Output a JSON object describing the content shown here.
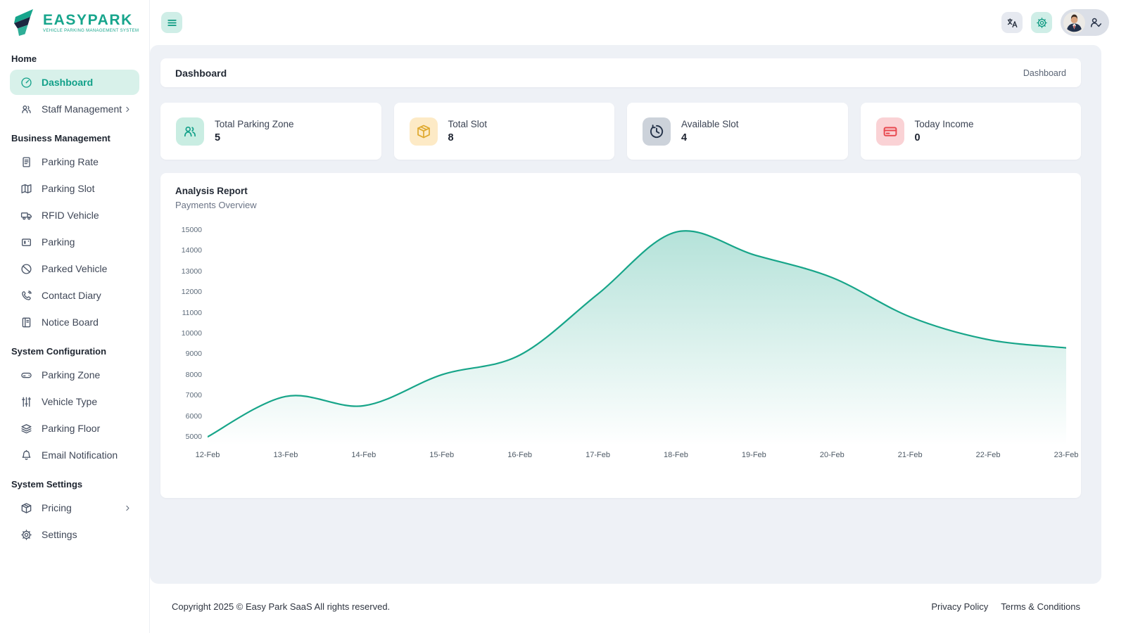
{
  "brand": {
    "name": "EASYPARK",
    "tagline": "VEHICLE PARKING MANAGEMENT SYSTEM"
  },
  "header": {
    "page_title": "Dashboard",
    "breadcrumb": "Dashboard"
  },
  "sidebar": {
    "sections": [
      {
        "label": "Home",
        "items": [
          {
            "label": "Dashboard",
            "active": true
          },
          {
            "label": "Staff Management",
            "chevron": true
          }
        ]
      },
      {
        "label": "Business Management",
        "items": [
          {
            "label": "Parking Rate"
          },
          {
            "label": "Parking Slot"
          },
          {
            "label": "RFID Vehicle"
          },
          {
            "label": "Parking"
          },
          {
            "label": "Parked Vehicle"
          },
          {
            "label": "Contact Diary"
          },
          {
            "label": "Notice Board"
          }
        ]
      },
      {
        "label": "System Configuration",
        "items": [
          {
            "label": "Parking Zone"
          },
          {
            "label": "Vehicle Type"
          },
          {
            "label": "Parking Floor"
          },
          {
            "label": "Email Notification"
          }
        ]
      },
      {
        "label": "System Settings",
        "items": [
          {
            "label": "Pricing",
            "chevron": true
          },
          {
            "label": "Settings"
          }
        ]
      }
    ]
  },
  "stats": [
    {
      "label": "Total Parking Zone",
      "value": "5",
      "icon": "users-icon",
      "accent": "#12a089"
    },
    {
      "label": "Total Slot",
      "value": "8",
      "icon": "box-icon",
      "accent": "#dfa92f"
    },
    {
      "label": "Available Slot",
      "value": "4",
      "icon": "clock-history-icon",
      "accent": "#26344a"
    },
    {
      "label": "Today Income",
      "value": "0",
      "icon": "credit-card-icon",
      "accent": "#e8484f"
    }
  ],
  "chart_data": {
    "type": "area",
    "title": "Analysis Report",
    "subtitle": "Payments Overview",
    "categories": [
      "12-Feb",
      "13-Feb",
      "14-Feb",
      "15-Feb",
      "16-Feb",
      "17-Feb",
      "18-Feb",
      "19-Feb",
      "20-Feb",
      "21-Feb",
      "22-Feb",
      "23-Feb"
    ],
    "values": [
      5000,
      6950,
      6500,
      8000,
      8950,
      11900,
      14900,
      13800,
      12700,
      10800,
      9700,
      9300
    ],
    "xlabel": "",
    "ylabel": "",
    "ylim": [
      5000,
      15000
    ],
    "ytick_step": 1000,
    "grid": false,
    "legend": false,
    "line_color": "#17a589",
    "fill_from": "rgba(23,165,137,0.32)",
    "fill_to": "rgba(23,165,137,0)"
  },
  "footer": {
    "copyright": "Copyright 2025 © Easy Park SaaS All rights reserved.",
    "links": [
      {
        "label": "Privacy Policy"
      },
      {
        "label": "Terms & Conditions"
      }
    ]
  },
  "colors": {
    "primary": "#14a28c",
    "active_item_bg": "#d8f1ea",
    "panel_bg": "#eef1f6"
  }
}
